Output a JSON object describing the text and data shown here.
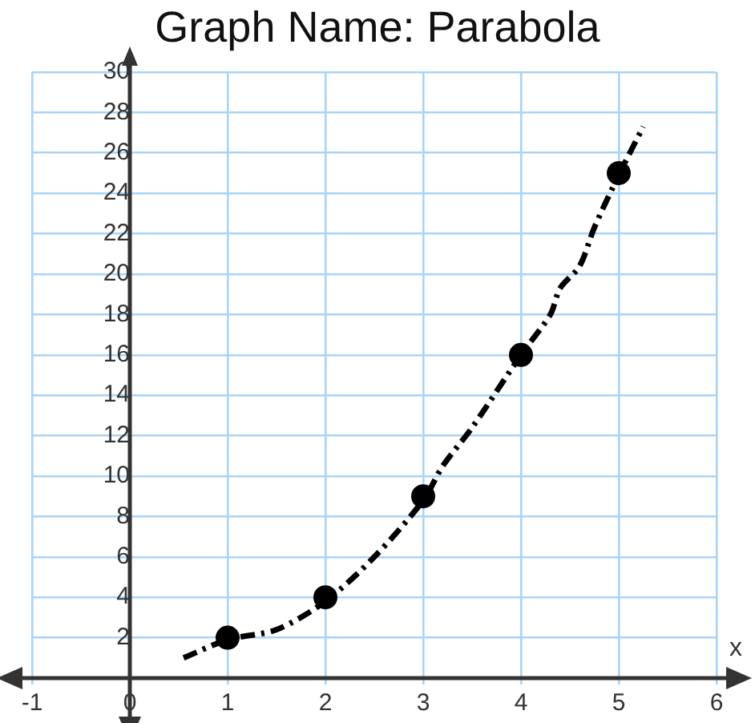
{
  "chart_data": {
    "type": "scatter",
    "title": "Graph  Name: Parabola",
    "xlabel": "x",
    "xlim": [
      -1,
      6
    ],
    "xticks": [
      -1,
      0,
      1,
      2,
      3,
      4,
      5,
      6
    ],
    "ylim": [
      0,
      30
    ],
    "yticks": [
      2,
      4,
      6,
      8,
      10,
      12,
      14,
      16,
      18,
      20,
      22,
      24,
      26,
      28,
      30
    ],
    "grid": true,
    "legend": false,
    "series": [
      {
        "type": "line",
        "color": "#000000",
        "line_style": "dashed",
        "marker": "none",
        "x": [
          0.55,
          1,
          1.5,
          2,
          2.5,
          3,
          3.2,
          3.5,
          4,
          4.3,
          4.4,
          4.6,
          4.75,
          5,
          5.25
        ],
        "values": [
          1,
          1.9,
          2.4,
          3.8,
          6,
          8.8,
          10.5,
          12.4,
          16,
          18,
          19.3,
          20.4,
          22.3,
          24.9,
          27.3
        ]
      },
      {
        "color": "#000000",
        "marker": "circle",
        "x": [
          1,
          2,
          3,
          4,
          5
        ],
        "values": [
          2,
          4,
          9,
          16,
          25
        ]
      }
    ]
  }
}
